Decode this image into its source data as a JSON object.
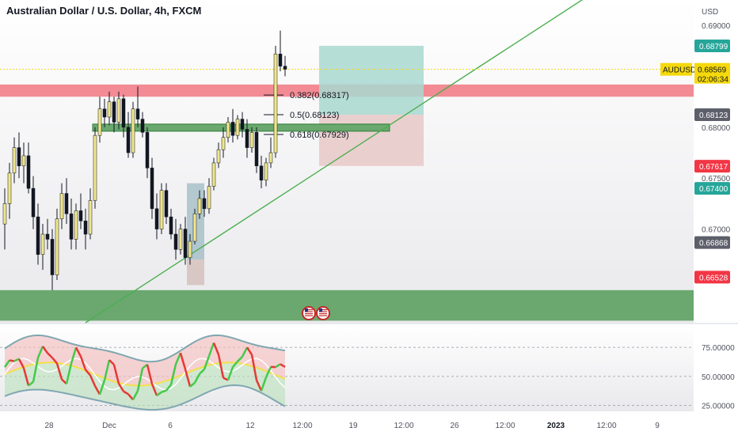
{
  "header": {
    "title": "Australian Dollar / U.S. Dollar, 4h, FXCM"
  },
  "price_axis": {
    "currency": "USD",
    "ticks": [
      "0.69000",
      "0.68000",
      "0.67500",
      "0.67000"
    ],
    "tags": [
      {
        "text": "0.68799",
        "color": "#26a69a"
      },
      {
        "text": "0.68123",
        "color": "#5d606b"
      },
      {
        "text": "0.67617",
        "color": "#f23645"
      },
      {
        "text": "0.67400",
        "color": "#26a69a"
      },
      {
        "text": "0.66868",
        "color": "#5d606b"
      },
      {
        "text": "0.66528",
        "color": "#f23645"
      }
    ],
    "current": {
      "symbol": "AUDUSD",
      "price": "0.68569",
      "countdown": "02:06:34",
      "color": "#f5d90a"
    }
  },
  "fib_levels": [
    "0.382(0.68317)",
    "0.5(0.68123)",
    "0.618(0.67929)"
  ],
  "oscillator": {
    "ticks": [
      "75.00000",
      "50.00000",
      "25.00000"
    ]
  },
  "time_axis": [
    "28",
    "Dec",
    "6",
    "12",
    "12:00",
    "19",
    "12:00",
    "26",
    "12:00",
    "2023",
    "12:00",
    "9"
  ],
  "icons": [
    "us-flag-event-icon",
    "us-flag-event-icon"
  ],
  "colors": {
    "bull": "#f0e68c",
    "bear": "#131722",
    "trend": "#4caf50",
    "resistance": "#f28b94",
    "support": "#6aa86f",
    "target": "#a8d8d0",
    "stop": "#e8c8c8",
    "pane_bg": "#e9e9ec",
    "pane_top": "#ffffff"
  },
  "chart_data": {
    "type": "candlestick",
    "title": "Australian Dollar / U.S. Dollar, 4h, FXCM",
    "ylabel": "USD",
    "ylim": [
      0.6608,
      0.6925
    ],
    "last_price": 0.68569,
    "candles": [
      [
        0.6705,
        0.674,
        0.668,
        0.6725
      ],
      [
        0.6725,
        0.6765,
        0.671,
        0.6755
      ],
      [
        0.6755,
        0.679,
        0.6745,
        0.678
      ],
      [
        0.678,
        0.6795,
        0.675,
        0.6762
      ],
      [
        0.6762,
        0.6785,
        0.6745,
        0.6772
      ],
      [
        0.6772,
        0.6785,
        0.6735,
        0.674
      ],
      [
        0.674,
        0.6752,
        0.67,
        0.6712
      ],
      [
        0.6712,
        0.6725,
        0.6665,
        0.6675
      ],
      [
        0.6675,
        0.6705,
        0.666,
        0.6695
      ],
      [
        0.6695,
        0.671,
        0.668,
        0.669
      ],
      [
        0.669,
        0.67,
        0.664,
        0.6655
      ],
      [
        0.6655,
        0.672,
        0.665,
        0.671
      ],
      [
        0.671,
        0.6745,
        0.67,
        0.6735
      ],
      [
        0.6735,
        0.675,
        0.6705,
        0.6715
      ],
      [
        0.6715,
        0.673,
        0.668,
        0.669
      ],
      [
        0.669,
        0.6725,
        0.668,
        0.6718
      ],
      [
        0.6718,
        0.6735,
        0.67,
        0.6708
      ],
      [
        0.6708,
        0.672,
        0.668,
        0.6695
      ],
      [
        0.6695,
        0.674,
        0.669,
        0.6728
      ],
      [
        0.6728,
        0.68,
        0.672,
        0.6792
      ],
      [
        0.6792,
        0.683,
        0.6785,
        0.6818
      ],
      [
        0.6818,
        0.6828,
        0.68,
        0.681
      ],
      [
        0.681,
        0.6835,
        0.6802,
        0.6825
      ],
      [
        0.6825,
        0.683,
        0.6795,
        0.6805
      ],
      [
        0.6805,
        0.6835,
        0.6798,
        0.6828
      ],
      [
        0.6828,
        0.6832,
        0.679,
        0.68
      ],
      [
        0.68,
        0.6815,
        0.677,
        0.6775
      ],
      [
        0.6775,
        0.6825,
        0.677,
        0.6818
      ],
      [
        0.6818,
        0.684,
        0.68,
        0.6808
      ],
      [
        0.6808,
        0.6815,
        0.679,
        0.6795
      ],
      [
        0.6795,
        0.68,
        0.675,
        0.676
      ],
      [
        0.676,
        0.677,
        0.671,
        0.672
      ],
      [
        0.672,
        0.6735,
        0.669,
        0.67
      ],
      [
        0.67,
        0.6745,
        0.6695,
        0.6738
      ],
      [
        0.6738,
        0.6745,
        0.6705,
        0.6712
      ],
      [
        0.6712,
        0.672,
        0.669,
        0.6695
      ],
      [
        0.6695,
        0.671,
        0.667,
        0.668
      ],
      [
        0.668,
        0.6705,
        0.6675,
        0.67
      ],
      [
        0.67,
        0.6712,
        0.6665,
        0.6672
      ],
      [
        0.6672,
        0.6695,
        0.6665,
        0.6688
      ],
      [
        0.6688,
        0.672,
        0.6685,
        0.6715
      ],
      [
        0.6715,
        0.6738,
        0.671,
        0.673
      ],
      [
        0.673,
        0.6738,
        0.6712,
        0.672
      ],
      [
        0.672,
        0.675,
        0.6715,
        0.6742
      ],
      [
        0.6742,
        0.677,
        0.6738,
        0.6765
      ],
      [
        0.6765,
        0.6785,
        0.676,
        0.6778
      ],
      [
        0.6778,
        0.68,
        0.677,
        0.679
      ],
      [
        0.679,
        0.681,
        0.6785,
        0.6805
      ],
      [
        0.6805,
        0.6818,
        0.6785,
        0.6792
      ],
      [
        0.6792,
        0.6812,
        0.6788,
        0.6808
      ],
      [
        0.6808,
        0.6815,
        0.679,
        0.6798
      ],
      [
        0.6798,
        0.6808,
        0.677,
        0.678
      ],
      [
        0.678,
        0.68,
        0.6775,
        0.6795
      ],
      [
        0.6795,
        0.68,
        0.6755,
        0.6762
      ],
      [
        0.6762,
        0.6772,
        0.674,
        0.6748
      ],
      [
        0.6748,
        0.677,
        0.6742,
        0.6765
      ],
      [
        0.6765,
        0.679,
        0.676,
        0.6775
      ],
      [
        0.6775,
        0.688,
        0.677,
        0.6872
      ],
      [
        0.6872,
        0.6895,
        0.6855,
        0.686
      ],
      [
        0.686,
        0.687,
        0.685,
        0.6857
      ]
    ],
    "zones": {
      "resistance": [
        0.683,
        0.6842
      ],
      "support": [
        0.661,
        0.664
      ],
      "fib_box": [
        0.6795,
        0.68
      ],
      "long_target": [
        0.68123,
        0.688
      ],
      "long_stop": [
        0.6762,
        0.68123
      ]
    },
    "x_labels": [
      "28",
      "Dec",
      "6",
      "12",
      "12:00",
      "19",
      "12:00",
      "26",
      "12:00",
      "2023",
      "12:00",
      "9"
    ],
    "oscillator": {
      "ylim": [
        20,
        88
      ],
      "levels": [
        75,
        50,
        25
      ]
    }
  }
}
